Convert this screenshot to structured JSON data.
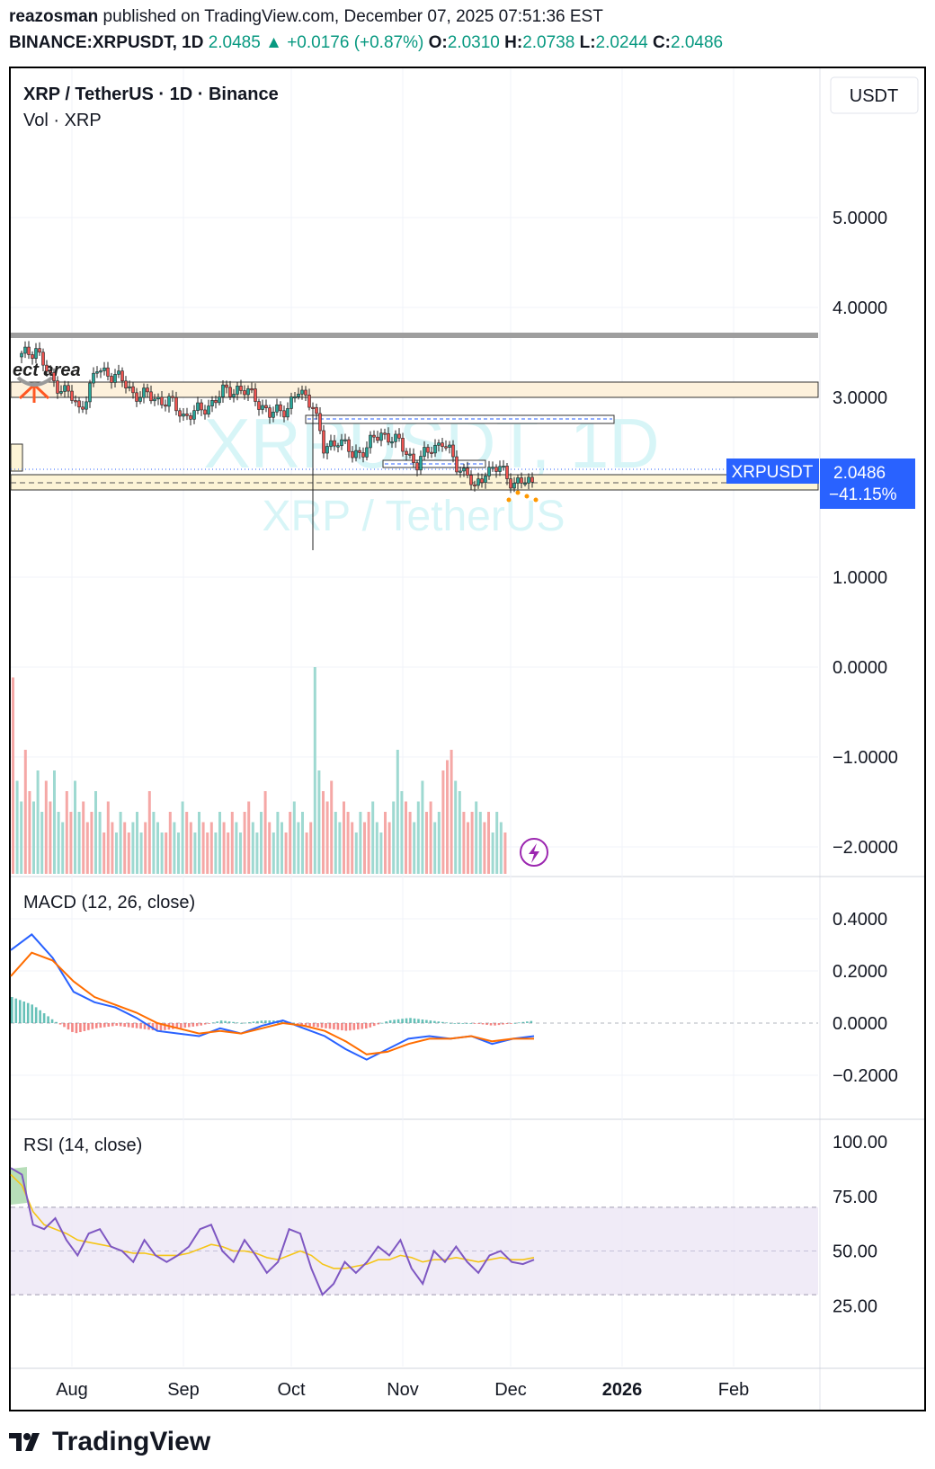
{
  "header": {
    "author": "reazosman",
    "published_text": " published on TradingView.com, December 07, 2025 07:51:36 EST",
    "symbol": "BINANCE:XRPUSDT, 1D",
    "last": "2.0485",
    "change": "+0.0176 (+0.87%)",
    "o_label": "O:",
    "o": "2.0310",
    "h_label": "H:",
    "h": "2.0738",
    "l_label": "L:",
    "l": "2.0244",
    "c_label": "C:",
    "c": "2.0486"
  },
  "legend": {
    "title": "XRP / TetherUS · 1D · Binance",
    "volume": "Vol · XRP",
    "macd": "MACD (12, 26, close)",
    "rsi": "RSI (14, close)"
  },
  "currency_button": "USDT",
  "watermark": {
    "main": "XRPUSDT, 1D",
    "sub": "XRP / TetherUS"
  },
  "price_tag": {
    "symbol": "XRPUSDT",
    "price": "2.0486",
    "percent": "−41.15%"
  },
  "drawing_label": "ect area",
  "brand": "TradingView",
  "colors": {
    "up": "#26a69a",
    "down": "#ef5350",
    "macd": "#2962ff",
    "signal": "#ff6d00",
    "rsi": "#7e57c2",
    "rsi_ma": "#f5c518",
    "tag": "#2962ff"
  },
  "chart_data": [
    {
      "type": "candlestick",
      "title": "XRP / TetherUS · 1D · Binance",
      "x_ticks": [
        "Aug",
        "Sep",
        "Oct",
        "Nov",
        "Dec",
        "2026",
        "Feb"
      ],
      "y_ticks": [
        "5.0000",
        "4.0000",
        "3.0000",
        "1.0000",
        "0.0000",
        "−1.0000",
        "−2.0000"
      ],
      "ylim": [
        -2.45,
        6.0
      ],
      "last_price": 2.0486,
      "close_path": [
        {
          "date": "2025-07-18",
          "close": 3.45
        },
        {
          "date": "2025-07-22",
          "close": 3.55
        },
        {
          "date": "2025-07-26",
          "close": 3.2
        },
        {
          "date": "2025-07-31",
          "close": 3.05
        },
        {
          "date": "2025-08-03",
          "close": 2.85
        },
        {
          "date": "2025-08-08",
          "close": 3.3
        },
        {
          "date": "2025-08-13",
          "close": 3.25
        },
        {
          "date": "2025-08-18",
          "close": 3.05
        },
        {
          "date": "2025-08-23",
          "close": 3.0
        },
        {
          "date": "2025-08-28",
          "close": 2.95
        },
        {
          "date": "2025-09-01",
          "close": 2.8
        },
        {
          "date": "2025-09-06",
          "close": 2.85
        },
        {
          "date": "2025-09-12",
          "close": 3.05
        },
        {
          "date": "2025-09-16",
          "close": 3.1
        },
        {
          "date": "2025-09-21",
          "close": 3.0
        },
        {
          "date": "2025-09-25",
          "close": 2.8
        },
        {
          "date": "2025-09-30",
          "close": 2.9
        },
        {
          "date": "2025-10-03",
          "close": 3.05
        },
        {
          "date": "2025-10-07",
          "close": 2.95
        },
        {
          "date": "2025-10-10",
          "close": 2.4
        },
        {
          "date": "2025-10-14",
          "close": 2.55
        },
        {
          "date": "2025-10-18",
          "close": 2.35
        },
        {
          "date": "2025-10-22",
          "close": 2.45
        },
        {
          "date": "2025-10-26",
          "close": 2.6
        },
        {
          "date": "2025-10-29",
          "close": 2.55
        },
        {
          "date": "2025-11-02",
          "close": 2.4
        },
        {
          "date": "2025-11-05",
          "close": 2.25
        },
        {
          "date": "2025-11-09",
          "close": 2.45
        },
        {
          "date": "2025-11-12",
          "close": 2.5
        },
        {
          "date": "2025-11-16",
          "close": 2.25
        },
        {
          "date": "2025-11-19",
          "close": 2.15
        },
        {
          "date": "2025-11-21",
          "close": 1.95
        },
        {
          "date": "2025-11-24",
          "close": 2.2
        },
        {
          "date": "2025-11-28",
          "close": 2.2
        },
        {
          "date": "2025-12-02",
          "close": 2.05
        },
        {
          "date": "2025-12-05",
          "close": 2.05
        },
        {
          "date": "2025-12-07",
          "close": 2.05
        }
      ],
      "volume_relative": [
        0.95,
        0.45,
        0.35,
        0.6,
        0.4,
        0.35,
        0.5,
        0.3,
        0.45,
        0.35,
        0.5,
        0.3,
        0.25,
        0.4,
        0.3,
        0.45,
        0.3,
        0.35,
        0.25,
        0.3,
        0.4,
        0.3,
        0.2,
        0.35,
        0.25,
        0.2,
        0.3,
        0.25,
        0.2,
        0.25,
        0.3,
        0.2,
        0.25,
        0.4,
        0.3,
        0.25,
        0.2,
        0.2,
        0.3,
        0.25,
        0.2,
        0.35,
        0.3,
        0.25,
        0.2,
        0.3,
        0.25,
        0.2,
        0.25,
        0.2,
        0.3,
        0.25,
        0.2,
        0.3,
        0.25,
        0.2,
        0.3,
        0.35,
        0.25,
        0.2,
        0.3,
        0.4,
        0.25,
        0.2,
        0.3,
        0.25,
        0.2,
        0.3,
        0.35,
        0.25,
        0.3,
        0.2,
        0.25,
        1.0,
        0.5,
        0.4,
        0.35,
        0.45,
        0.3,
        0.25,
        0.35,
        0.3,
        0.25,
        0.2,
        0.3,
        0.25,
        0.3,
        0.35,
        0.25,
        0.2,
        0.3,
        0.25,
        0.35,
        0.6,
        0.4,
        0.35,
        0.3,
        0.25,
        0.35,
        0.45,
        0.3,
        0.35,
        0.25,
        0.3,
        0.5,
        0.55,
        0.6,
        0.45,
        0.4,
        0.3,
        0.25,
        0.3,
        0.35,
        0.3,
        0.25,
        0.3,
        0.2,
        0.3,
        0.25,
        0.2
      ]
    },
    {
      "type": "line",
      "title": "MACD (12, 26, close)",
      "y_ticks": [
        "0.4000",
        "0.2000",
        "0.0000",
        "−0.2000"
      ],
      "series": [
        {
          "values": [
            0.28,
            0.34,
            0.25,
            0.12,
            0.08,
            0.06,
            0.02,
            -0.03,
            -0.04,
            -0.05,
            -0.02,
            -0.04,
            -0.01,
            0.01,
            -0.02,
            -0.05,
            -0.1,
            -0.14,
            -0.1,
            -0.06,
            -0.05,
            -0.06,
            -0.05,
            -0.08,
            -0.06,
            -0.05
          ]
        },
        {
          "values": [
            0.18,
            0.27,
            0.24,
            0.16,
            0.1,
            0.07,
            0.04,
            0.0,
            -0.02,
            -0.04,
            -0.03,
            -0.04,
            -0.02,
            0.0,
            -0.01,
            -0.03,
            -0.07,
            -0.12,
            -0.11,
            -0.08,
            -0.06,
            -0.06,
            -0.05,
            -0.07,
            -0.06,
            -0.06
          ]
        }
      ]
    },
    {
      "type": "line",
      "title": "RSI (14, close)",
      "y_ticks": [
        "100.00",
        "75.00",
        "50.00",
        "25.00"
      ],
      "ylim": [
        0,
        100
      ],
      "bands": [
        30,
        50,
        70
      ],
      "series": [
        {
          "values": [
            88,
            85,
            62,
            60,
            65,
            55,
            48,
            58,
            60,
            52,
            50,
            45,
            55,
            48,
            45,
            48,
            52,
            60,
            62,
            50,
            45,
            55,
            48,
            40,
            45,
            60,
            58,
            42,
            30,
            35,
            45,
            40,
            45,
            52,
            48,
            55,
            42,
            35,
            50,
            45,
            52,
            45,
            40,
            48,
            50,
            45,
            44,
            46
          ]
        },
        {
          "values": [
            85,
            80,
            68,
            62,
            60,
            58,
            55,
            54,
            53,
            52,
            50,
            49,
            49,
            48,
            48,
            48,
            49,
            51,
            53,
            52,
            50,
            50,
            49,
            47,
            46,
            48,
            50,
            48,
            44,
            42,
            42,
            43,
            44,
            46,
            46,
            48,
            47,
            45,
            46,
            46,
            47,
            46,
            45,
            46,
            47,
            46,
            46,
            47
          ]
        }
      ]
    }
  ]
}
